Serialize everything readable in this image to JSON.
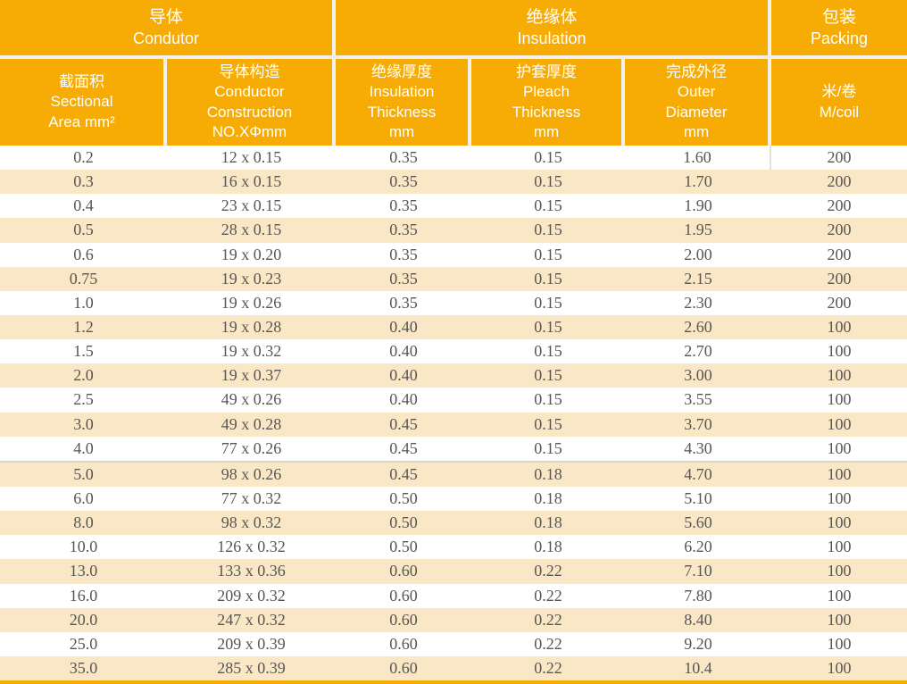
{
  "header": {
    "groups": [
      {
        "zh": "导体",
        "en": "Condutor"
      },
      {
        "zh": "绝缘体",
        "en": "Insulation"
      },
      {
        "zh": "包装",
        "en": "Packing"
      }
    ],
    "columns": [
      {
        "label": "截面积\nSectional\nArea mm²"
      },
      {
        "label": "导体构造\nConductor\nConstruction\nNO.XΦmm"
      },
      {
        "label": "绝缘厚度\nInsulation\nThickness\nmm"
      },
      {
        "label": "护套厚度\nPleach\nThickness\nmm"
      },
      {
        "label": "完成外径\nOuter\nDiameter\nmm"
      },
      {
        "label": "米/卷\nM/coil"
      }
    ]
  },
  "rows": [
    [
      "0.2",
      "12 x 0.15",
      "0.35",
      "0.15",
      "1.60",
      "200"
    ],
    [
      "0.3",
      "16 x 0.15",
      "0.35",
      "0.15",
      "1.70",
      "200"
    ],
    [
      "0.4",
      "23 x 0.15",
      "0.35",
      "0.15",
      "1.90",
      "200"
    ],
    [
      "0.5",
      "28 x 0.15",
      "0.35",
      "0.15",
      "1.95",
      "200"
    ],
    [
      "0.6",
      "19 x 0.20",
      "0.35",
      "0.15",
      "2.00",
      "200"
    ],
    [
      "0.75",
      "19 x 0.23",
      "0.35",
      "0.15",
      "2.15",
      "200"
    ],
    [
      "1.0",
      "19 x 0.26",
      "0.35",
      "0.15",
      "2.30",
      "200"
    ],
    [
      "1.2",
      "19 x 0.28",
      "0.40",
      "0.15",
      "2.60",
      "100"
    ],
    [
      "1.5",
      "19 x 0.32",
      "0.40",
      "0.15",
      "2.70",
      "100"
    ],
    [
      "2.0",
      "19 x 0.37",
      "0.40",
      "0.15",
      "3.00",
      "100"
    ],
    [
      "2.5",
      "49 x 0.26",
      "0.40",
      "0.15",
      "3.55",
      "100"
    ],
    [
      "3.0",
      "49 x 0.28",
      "0.45",
      "0.15",
      "3.70",
      "100"
    ],
    [
      "4.0",
      "77 x 0.26",
      "0.45",
      "0.15",
      "4.30",
      "100"
    ],
    [
      "5.0",
      "98 x 0.26",
      "0.45",
      "0.18",
      "4.70",
      "100"
    ],
    [
      "6.0",
      "77 x 0.32",
      "0.50",
      "0.18",
      "5.10",
      "100"
    ],
    [
      "8.0",
      "98 x 0.32",
      "0.50",
      "0.18",
      "5.60",
      "100"
    ],
    [
      "10.0",
      "126 x 0.32",
      "0.50",
      "0.18",
      "6.20",
      "100"
    ],
    [
      "13.0",
      "133 x 0.36",
      "0.60",
      "0.22",
      "7.10",
      "100"
    ],
    [
      "16.0",
      "209 x 0.32",
      "0.60",
      "0.22",
      "7.80",
      "100"
    ],
    [
      "20.0",
      "247 x 0.32",
      "0.60",
      "0.22",
      "8.40",
      "100"
    ],
    [
      "25.0",
      "209 x 0.39",
      "0.60",
      "0.22",
      "9.20",
      "100"
    ],
    [
      "35.0",
      "285 x 0.39",
      "0.60",
      "0.22",
      "10.4",
      "100"
    ]
  ],
  "separator_before_row_index": 13,
  "colors": {
    "header_orange": "#F6AC04",
    "row_alt": "#FAE7C5",
    "divider": "#F3F1EC",
    "sep_line": "#D9D6D0",
    "body_text": "#585654",
    "header_text": "#FFFFFF"
  }
}
